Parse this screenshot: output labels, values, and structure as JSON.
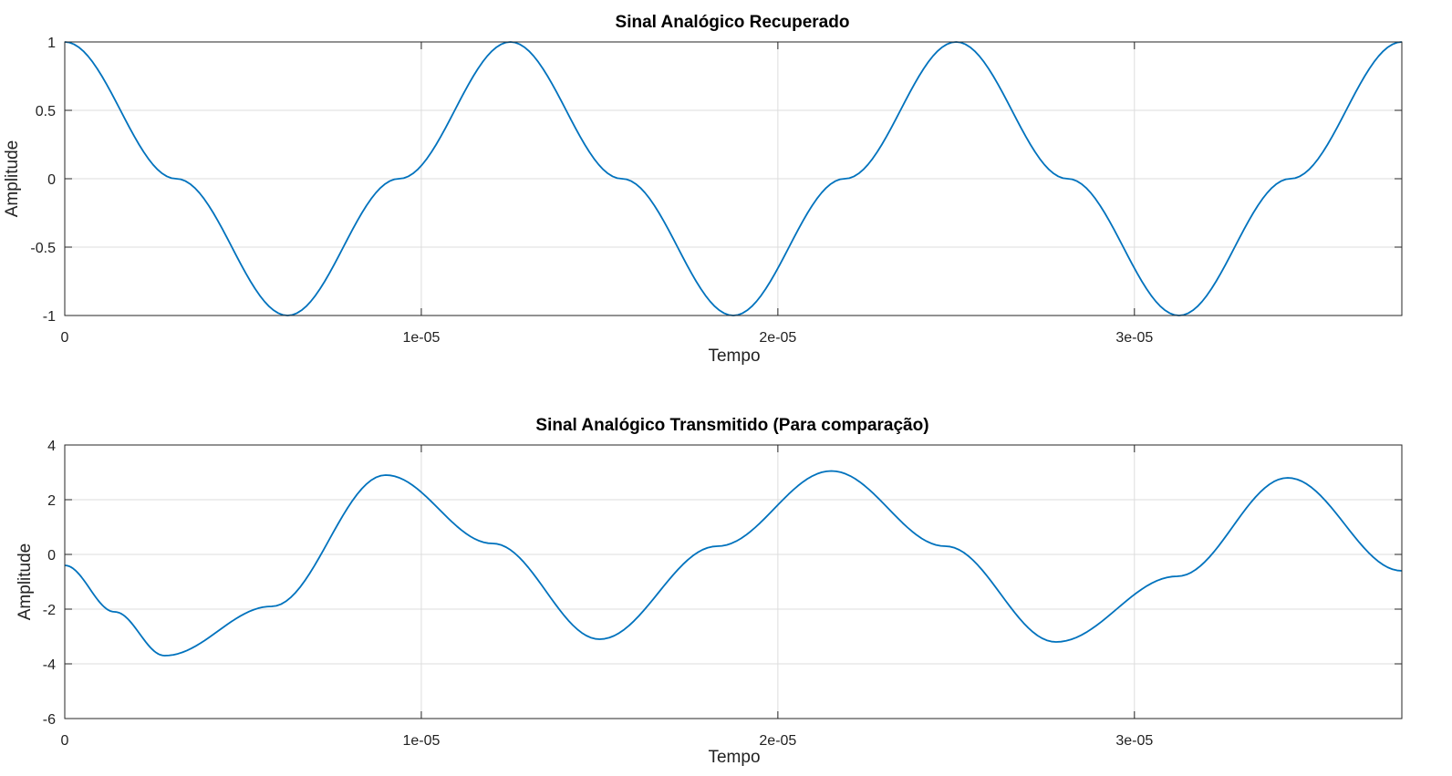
{
  "chart_data": [
    {
      "type": "line",
      "title": "Sinal Analógico Recuperado",
      "xlabel": "Tempo",
      "ylabel": "Amplitude",
      "xlim": [
        0,
        3.75e-05
      ],
      "ylim": [
        -1,
        1
      ],
      "xticks": [
        0,
        1e-05,
        2e-05,
        3e-05
      ],
      "xtick_labels": [
        "0",
        "1e-05",
        "2e-05",
        "3e-05"
      ],
      "yticks": [
        1,
        0.5,
        0,
        -0.5,
        -1
      ],
      "ytick_labels": [
        "1",
        "0.5",
        "0",
        "-0.5",
        "-1"
      ],
      "grid": true,
      "color": "#0072bd",
      "series": [
        {
          "x": [
            0,
            3.125e-06,
            6.25e-06,
            9.375e-06,
            1.25e-05,
            1.5625e-05,
            1.875e-05,
            2.1875e-05,
            2.5e-05,
            2.8125e-05,
            3.125e-05,
            3.4375e-05,
            3.75e-05
          ],
          "y": [
            1,
            0,
            -1,
            0,
            1,
            0,
            -1,
            0,
            1,
            0,
            -1,
            0,
            1
          ]
        }
      ]
    },
    {
      "type": "line",
      "title": "Sinal Analógico Transmitido (Para comparação)",
      "xlabel": "Tempo",
      "ylabel": "Amplitude",
      "xlim": [
        0,
        3.75e-05
      ],
      "ylim": [
        -6,
        4
      ],
      "xticks": [
        0,
        1e-05,
        2e-05,
        3e-05
      ],
      "xtick_labels": [
        "0",
        "1e-05",
        "2e-05",
        "3e-05"
      ],
      "yticks": [
        4,
        2,
        0,
        -2,
        -4,
        -6
      ],
      "ytick_labels": [
        "4",
        "2",
        "0",
        "-2",
        "-4",
        "-6"
      ],
      "grid": true,
      "color": "#0072bd",
      "series": [
        {
          "x": [
            0,
            1.4e-06,
            2.8e-06,
            5.8e-06,
            9e-06,
            1.2e-05,
            1.5e-05,
            1.83e-05,
            2.15e-05,
            2.47e-05,
            2.78e-05,
            3.12e-05,
            3.43e-05,
            3.75e-05
          ],
          "y": [
            -0.4,
            -2.1,
            -3.7,
            -1.9,
            2.9,
            0.4,
            -3.1,
            0.3,
            3.05,
            0.3,
            -3.2,
            -0.8,
            2.8,
            -0.6
          ]
        }
      ]
    }
  ]
}
